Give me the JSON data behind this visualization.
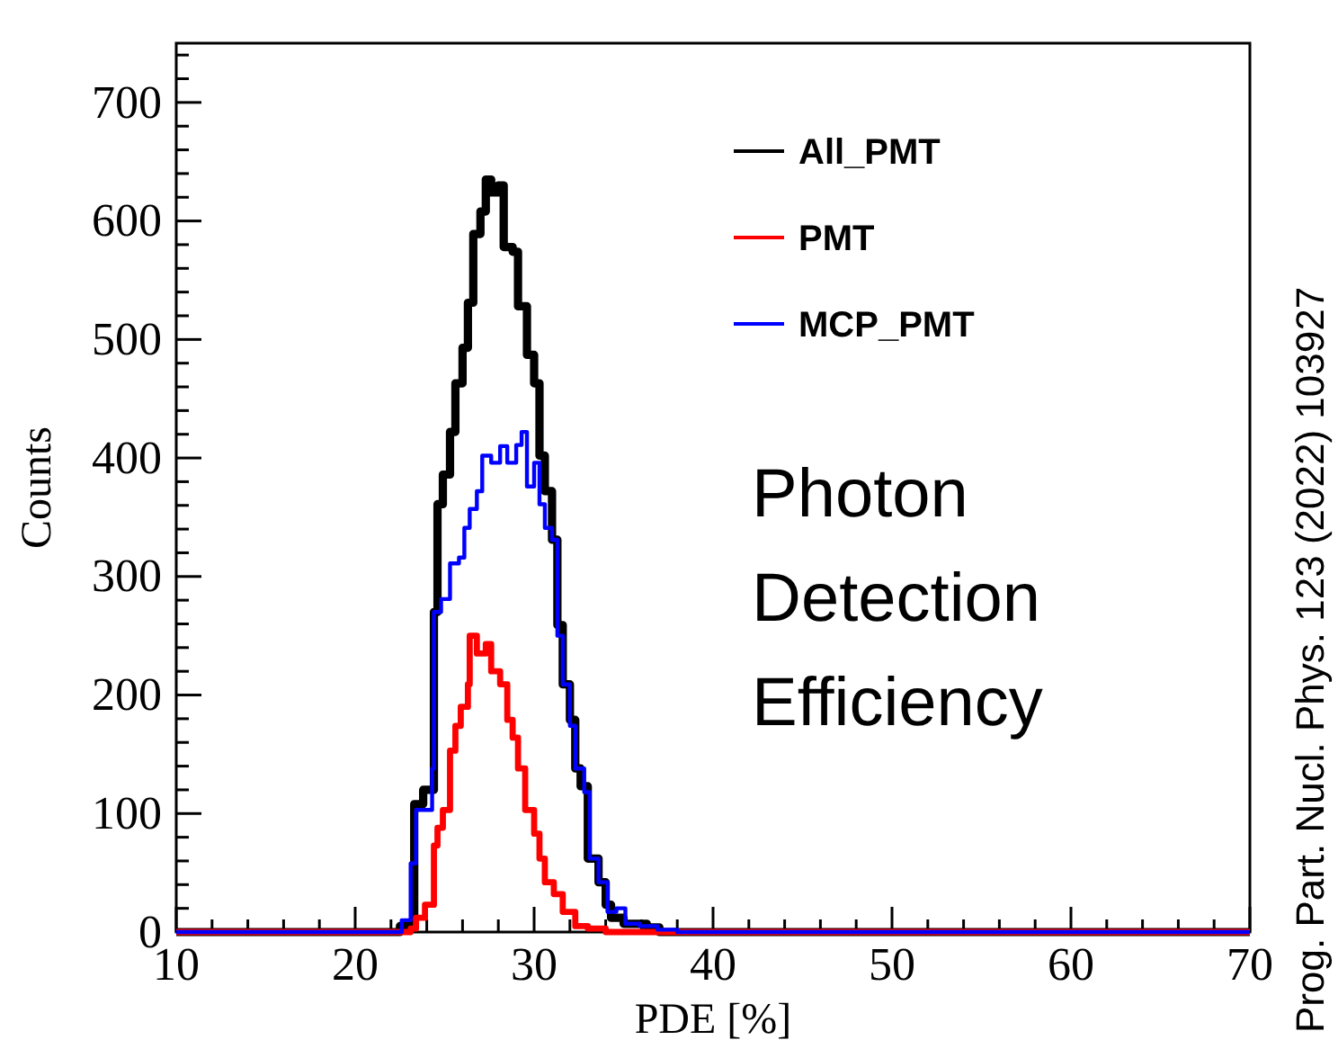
{
  "chart_data": {
    "type": "step",
    "xlabel": "PDE [%]",
    "ylabel": "Counts",
    "xlim": [
      10,
      70
    ],
    "ylim": [
      0,
      750
    ],
    "xticks": [
      10,
      {
        "value": 12,
        "label": null
      },
      {
        "value": 14,
        "label": null
      },
      {
        "value": 16,
        "label": null
      },
      {
        "value": 18,
        "label": null
      },
      20,
      {
        "value": 22,
        "label": null
      },
      {
        "value": 24,
        "label": null
      },
      {
        "value": 26,
        "label": null
      },
      {
        "value": 28,
        "label": null
      },
      30,
      {
        "value": 32,
        "label": null
      },
      {
        "value": 34,
        "label": null
      },
      {
        "value": 36,
        "label": null
      },
      {
        "value": 38,
        "label": null
      },
      40,
      {
        "value": 42,
        "label": null
      },
      {
        "value": 44,
        "label": null
      },
      {
        "value": 46,
        "label": null
      },
      {
        "value": 48,
        "label": null
      },
      50,
      {
        "value": 52,
        "label": null
      },
      {
        "value": 54,
        "label": null
      },
      {
        "value": 56,
        "label": null
      },
      {
        "value": 58,
        "label": null
      },
      60,
      {
        "value": 62,
        "label": null
      },
      {
        "value": 64,
        "label": null
      },
      {
        "value": 66,
        "label": null
      },
      {
        "value": 68,
        "label": null
      },
      70
    ],
    "yticks": [
      0,
      {
        "value": 20,
        "label": null
      },
      {
        "value": 40,
        "label": null
      },
      {
        "value": 60,
        "label": null
      },
      {
        "value": 80,
        "label": null
      },
      100,
      {
        "value": 120,
        "label": null
      },
      {
        "value": 140,
        "label": null
      },
      {
        "value": 160,
        "label": null
      },
      {
        "value": 180,
        "label": null
      },
      200,
      {
        "value": 220,
        "label": null
      },
      {
        "value": 240,
        "label": null
      },
      {
        "value": 260,
        "label": null
      },
      {
        "value": 280,
        "label": null
      },
      300,
      {
        "value": 320,
        "label": null
      },
      {
        "value": 340,
        "label": null
      },
      {
        "value": 360,
        "label": null
      },
      {
        "value": 380,
        "label": null
      },
      400,
      {
        "value": 420,
        "label": null
      },
      {
        "value": 440,
        "label": null
      },
      {
        "value": 460,
        "label": null
      },
      {
        "value": 480,
        "label": null
      },
      500,
      {
        "value": 520,
        "label": null
      },
      {
        "value": 540,
        "label": null
      },
      {
        "value": 560,
        "label": null
      },
      {
        "value": 580,
        "label": null
      },
      600,
      {
        "value": 620,
        "label": null
      },
      {
        "value": 640,
        "label": null
      },
      {
        "value": 660,
        "label": null
      },
      {
        "value": 680,
        "label": null
      },
      700,
      {
        "value": 720,
        "label": null
      },
      {
        "value": 740,
        "label": null
      }
    ],
    "grid": false,
    "legend": "top right",
    "line_style": "solid",
    "marker": "none",
    "annotations": [
      "Photon Detection Efficiency",
      "Prog. Part. Nucl. Phys. 123 (2022) 103927"
    ],
    "series": [
      {
        "name": "All_PMT",
        "color": "#000000",
        "x": [
          10,
          22.5,
          23.3,
          23.8,
          24.4,
          24.6,
          24.9,
          25.3,
          25.6,
          26,
          26.3,
          26.6,
          27,
          27.3,
          27.6,
          28,
          28.3,
          28.8,
          29.1,
          29.6,
          30,
          30.3,
          30.6,
          31,
          31.3,
          31.6,
          32,
          32.3,
          32.6,
          33,
          33.6,
          34,
          34.3,
          35,
          36.3,
          37,
          70
        ],
        "values": [
          0,
          5,
          108,
          120,
          270,
          361,
          386,
          422,
          463,
          493,
          531,
          589,
          608,
          635,
          624,
          630,
          578,
          574,
          528,
          487,
          463,
          402,
          372,
          331,
          259,
          209,
          179,
          138,
          123,
          62,
          42,
          23,
          12,
          7,
          4,
          0,
          0
        ]
      },
      {
        "name": "PMT",
        "color": "#ff0000",
        "x": [
          10,
          23.1,
          23.4,
          23.9,
          24.4,
          24.6,
          24.9,
          25.3,
          25.6,
          25.9,
          26.3,
          26.4,
          26.8,
          27.3,
          27.6,
          28.1,
          28.5,
          28.8,
          29.1,
          29.5,
          30,
          30.3,
          30.6,
          31.1,
          31.6,
          32.3,
          33,
          34,
          70
        ],
        "values": [
          0,
          3,
          12,
          23,
          73,
          88,
          103,
          153,
          174,
          190,
          209,
          250,
          235,
          243,
          220,
          209,
          179,
          164,
          138,
          103,
          83,
          62,
          42,
          32,
          17,
          5,
          3,
          0,
          0
        ]
      },
      {
        "name": "MCP_PMT",
        "color": "#0000ff",
        "x": [
          10,
          22.6,
          23.1,
          23.4,
          24.3,
          24.4,
          24.8,
          25.3,
          25.8,
          26.1,
          26.4,
          26.8,
          27.1,
          27.6,
          28.1,
          28.5,
          29,
          29.3,
          29.6,
          30,
          30.3,
          30.6,
          31,
          31.3,
          31.6,
          32,
          32.3,
          32.8,
          33.1,
          33.6,
          34.1,
          34.6,
          35.1,
          35.9,
          36.9,
          38,
          70
        ],
        "values": [
          0,
          10,
          58,
          103,
          138,
          270,
          281,
          311,
          316,
          341,
          357,
          372,
          402,
          396,
          410,
          396,
          411,
          422,
          376,
          396,
          361,
          341,
          331,
          250,
          209,
          174,
          138,
          118,
          62,
          42,
          17,
          20,
          7,
          5,
          2,
          0,
          0
        ]
      }
    ]
  }
}
